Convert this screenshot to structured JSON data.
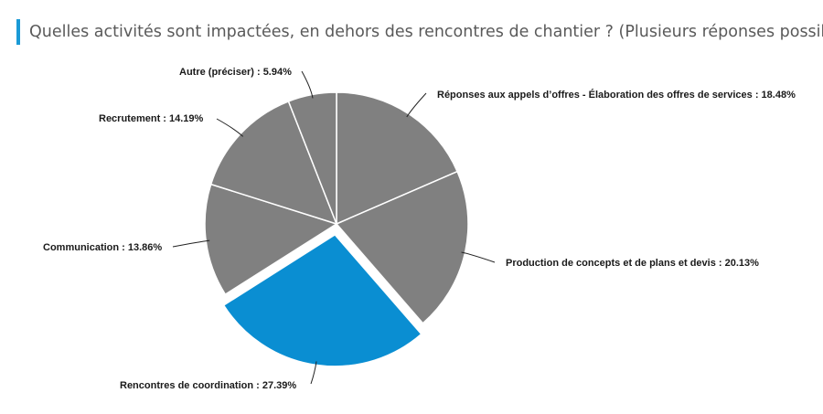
{
  "header": {
    "title": "Quelles activités sont impactées, en dehors des rencontres de chantier ? (Plusieurs réponses possibles)",
    "accent_color": "#1a9ad6"
  },
  "chart_data": {
    "type": "pie",
    "title": "Quelles activités sont impactées, en dehors des rencontres de chantier ? (Plusieurs réponses possibles)",
    "slices": [
      {
        "label": "Réponses aux appels d’offres - Élaboration des offres de services : 18.48%",
        "value": 18.48,
        "color": "#808080",
        "exploded": false
      },
      {
        "label": "Production de concepts et de plans et devis : 20.13%",
        "value": 20.13,
        "color": "#808080",
        "exploded": false
      },
      {
        "label": "Rencontres de coordination  : 27.39%",
        "value": 27.39,
        "color": "#0a8ed2",
        "exploded": true
      },
      {
        "label": "Communication  : 13.86%",
        "value": 13.86,
        "color": "#808080",
        "exploded": false
      },
      {
        "label": "Recrutement  : 14.19%",
        "value": 14.19,
        "color": "#808080",
        "exploded": false
      },
      {
        "label": "Autre (préciser) : 5.94%",
        "value": 5.94,
        "color": "#808080",
        "exploded": false
      }
    ]
  }
}
